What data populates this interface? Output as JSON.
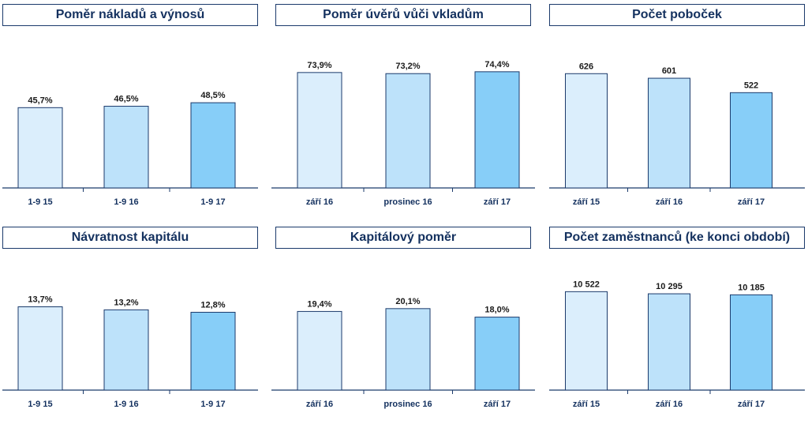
{
  "colors": [
    "#dbeefc",
    "#bde2fa",
    "#87cef8"
  ],
  "charts": [
    {
      "title": "Poměr nákladů a výnosů",
      "chart_data": {
        "type": "bar",
        "categories": [
          "1-9 15",
          "1-9 16",
          "1-9 17"
        ],
        "values": [
          45.7,
          46.5,
          48.5
        ],
        "labels": [
          "45,7%",
          "46,5%",
          "48,5%"
        ],
        "ylim": [
          0,
          80
        ]
      }
    },
    {
      "title": "Poměr úvěrů vůči vkladům",
      "chart_data": {
        "type": "bar",
        "categories": [
          "září 16",
          "prosinec 16",
          "září 17"
        ],
        "values": [
          73.9,
          73.2,
          74.4
        ],
        "labels": [
          "73,9%",
          "73,2%",
          "74,4%"
        ],
        "ylim": [
          0,
          90
        ]
      }
    },
    {
      "title": "Počet poboček",
      "chart_data": {
        "type": "bar",
        "categories": [
          "září 15",
          "září 16",
          "září 17"
        ],
        "values": [
          626,
          601,
          522
        ],
        "labels": [
          "626",
          "601",
          "522"
        ],
        "ylim": [
          0,
          770
        ]
      }
    },
    {
      "title": "Návratnost kapitálu",
      "chart_data": {
        "type": "bar",
        "categories": [
          "1-9 15",
          "1-9 16",
          "1-9 17"
        ],
        "values": [
          13.7,
          13.2,
          12.8
        ],
        "labels": [
          "13,7%",
          "13,2%",
          "12,8%"
        ],
        "ylim": [
          0,
          20
        ]
      }
    },
    {
      "title": "Kapitálový poměr",
      "chart_data": {
        "type": "bar",
        "categories": [
          "září 16",
          "prosinec 16",
          "září 17"
        ],
        "values": [
          19.4,
          20.1,
          18.0
        ],
        "labels": [
          "19,4%",
          "20,1%",
          "18,0%"
        ],
        "ylim": [
          0,
          30
        ]
      }
    },
    {
      "title": "Počet zaměstnanců (ke konci období)",
      "chart_data": {
        "type": "bar",
        "categories": [
          "září 15",
          "září 16",
          "září 17"
        ],
        "values": [
          10522,
          10295,
          10185
        ],
        "labels": [
          "10 522",
          "10 295",
          "10 185"
        ],
        "ylim": [
          0,
          13000
        ]
      }
    }
  ]
}
